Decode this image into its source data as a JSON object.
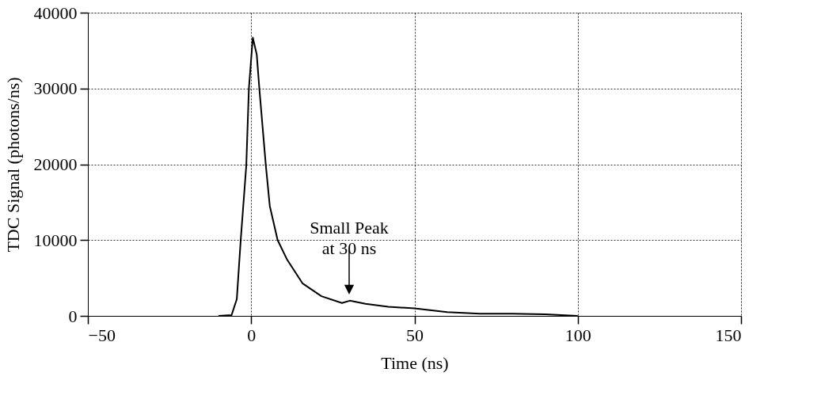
{
  "chart_data": {
    "type": "line",
    "xlabel": "Time (ns)",
    "ylabel": "TDC Signal (photons/ns)",
    "xlim": [
      -50,
      150
    ],
    "xticks": [
      -50,
      0,
      50,
      100,
      150
    ],
    "ylim": [
      0,
      40000
    ],
    "yticks": [
      0,
      10000,
      20000,
      30000,
      40000
    ],
    "grid": true,
    "marker": "none",
    "line_style": "solid",
    "annotations": [
      {
        "text": "Small Peak\nat 30 ns",
        "x": 30,
        "y": 2000
      }
    ],
    "series": [
      {
        "color": "#000000",
        "x": [
          -10,
          -6,
          -4.4,
          -3.2,
          -1.5,
          -0.7,
          0.5,
          1.7,
          2.5,
          4.5,
          5.7,
          8.1,
          10.9,
          15.7,
          21.5,
          27.8,
          30.2,
          35,
          42,
          50,
          60,
          70,
          80,
          90,
          100
        ],
        "values": [
          0,
          100,
          2200,
          10000,
          19800,
          30000,
          36700,
          34500,
          30000,
          19800,
          14500,
          10000,
          7500,
          4300,
          2600,
          1700,
          2000,
          1600,
          1200,
          1000,
          500,
          300,
          300,
          200,
          0
        ]
      }
    ]
  }
}
